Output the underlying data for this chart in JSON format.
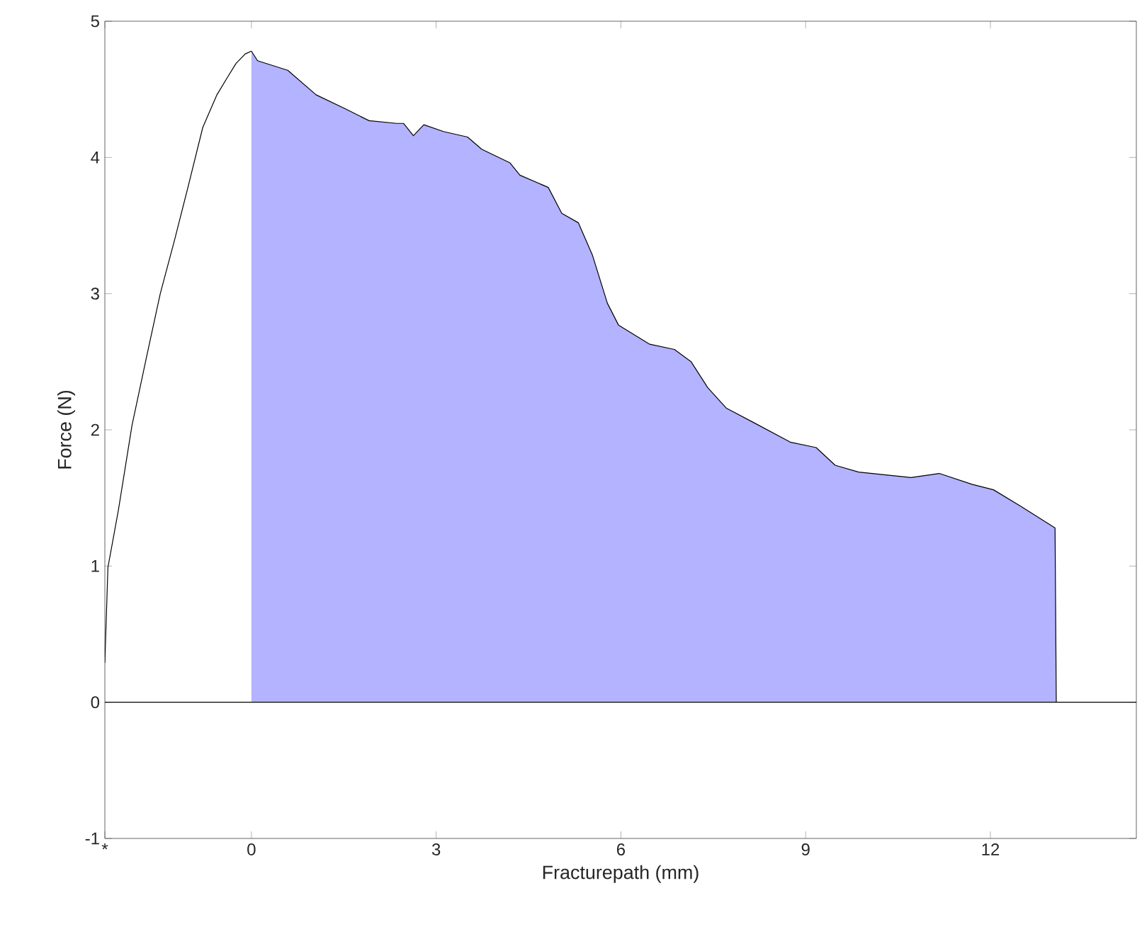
{
  "chart_data": {
    "type": "area",
    "xlabel": "Fracturepath (mm)",
    "ylabel": "Force (N)",
    "xlim": [
      -2.38,
      14.37
    ],
    "ylim": [
      -1,
      5
    ],
    "xticks": [
      {
        "value": -2.38,
        "label": "*"
      },
      0,
      3,
      6,
      9,
      12
    ],
    "yticks": [
      -1,
      0,
      1,
      2,
      3,
      4,
      5
    ],
    "series": [
      {
        "color": "#b3b3ff",
        "x": [
          0,
          0.1,
          0.59,
          1.05,
          1.51,
          1.91,
          2.36,
          2.47,
          2.63,
          2.8,
          3.12,
          3.51,
          3.74,
          4.2,
          4.36,
          4.82,
          5.04,
          5.31,
          5.54,
          5.78,
          5.96,
          6.46,
          6.87,
          7.14,
          7.41,
          7.71,
          8.17,
          8.75,
          9.17,
          9.48,
          9.86,
          10.71,
          11.17,
          11.7,
          12.05,
          12.49,
          13.05,
          13.07
        ],
        "values": [
          4.78,
          4.71,
          4.64,
          4.46,
          4.36,
          4.27,
          4.25,
          4.25,
          4.16,
          4.24,
          4.19,
          4.15,
          4.06,
          3.96,
          3.87,
          3.78,
          3.59,
          3.52,
          3.28,
          2.93,
          2.77,
          2.63,
          2.59,
          2.5,
          2.31,
          2.16,
          2.05,
          1.91,
          1.87,
          1.74,
          1.69,
          1.65,
          1.68,
          1.6,
          1.56,
          1.44,
          1.28,
          0
        ]
      },
      {
        "type": "line",
        "color": "#000000",
        "x": [
          -2.38,
          -2.33,
          -2.16,
          -1.94,
          -1.71,
          -1.48,
          -1.25,
          -1.02,
          -0.79,
          -0.56,
          -0.4,
          -0.25,
          -0.1,
          0,
          0.1,
          0.59,
          1.05,
          1.51,
          1.91,
          2.36,
          2.47,
          2.63,
          2.8,
          3.12,
          3.51,
          3.74,
          4.2,
          4.36,
          4.82,
          5.04,
          5.31,
          5.54,
          5.78,
          5.96,
          6.46,
          6.87,
          7.14,
          7.41,
          7.71,
          8.17,
          8.75,
          9.17,
          9.48,
          9.86,
          10.71,
          11.17,
          11.7,
          12.05,
          12.49,
          13.05,
          13.07
        ],
        "values": [
          0.29,
          0.99,
          1.41,
          2.03,
          2.52,
          3.0,
          3.39,
          3.8,
          4.22,
          4.46,
          4.58,
          4.69,
          4.76,
          4.78,
          4.71,
          4.64,
          4.46,
          4.36,
          4.27,
          4.25,
          4.25,
          4.16,
          4.24,
          4.19,
          4.15,
          4.06,
          3.96,
          3.87,
          3.78,
          3.59,
          3.52,
          3.28,
          2.93,
          2.77,
          2.63,
          2.59,
          2.5,
          2.31,
          2.16,
          2.05,
          1.91,
          1.87,
          1.74,
          1.69,
          1.65,
          1.68,
          1.6,
          1.56,
          1.44,
          1.28,
          0
        ]
      }
    ],
    "ref_lines": [
      {
        "axis": "y",
        "value": 0,
        "color": "#000000"
      }
    ]
  }
}
